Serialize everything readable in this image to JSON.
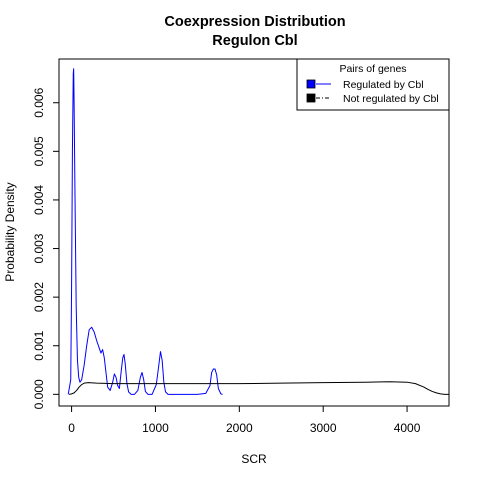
{
  "chart_data": {
    "type": "line",
    "title": "Coexpression Distribution",
    "subtitle": "Regulon Cbl",
    "xlabel": "SCR",
    "ylabel": "Probability Density",
    "xlim": [
      -150,
      4500
    ],
    "ylim": [
      -0.00024,
      0.0069
    ],
    "x_ticks": [
      0,
      1000,
      2000,
      3000,
      4000
    ],
    "x_tick_labels": [
      "0",
      "1000",
      "2000",
      "3000",
      "4000"
    ],
    "y_ticks": [
      0,
      0.001,
      0.002,
      0.003,
      0.004,
      0.005,
      0.006
    ],
    "y_tick_labels": [
      "0.000",
      "0.001",
      "0.002",
      "0.003",
      "0.004",
      "0.005",
      "0.006"
    ],
    "grid": false,
    "legend": {
      "title": "Pairs of genes",
      "position": "top-right",
      "entries": [
        "Regulated by  Cbl",
        "Not regulated by  Cbl"
      ]
    },
    "series": [
      {
        "name": "Regulated by  Cbl",
        "color": "#0000ff",
        "x": [
          -40,
          -10,
          0,
          10,
          20,
          25,
          30,
          40,
          55,
          70,
          85,
          100,
          120,
          150,
          180,
          210,
          240,
          270,
          300,
          330,
          350,
          370,
          390,
          410,
          430,
          460,
          490,
          510,
          530,
          550,
          570,
          590,
          610,
          625,
          640,
          660,
          680,
          710,
          750,
          790,
          820,
          840,
          860,
          880,
          910,
          960,
          1010,
          1040,
          1060,
          1080,
          1100,
          1120,
          1150,
          1200,
          1300,
          1400,
          1500,
          1600,
          1650,
          1670,
          1690,
          1710,
          1730,
          1750,
          1780,
          1800
        ],
        "y": [
          0.0,
          0.0003,
          0.0022,
          0.005,
          0.0066,
          0.0067,
          0.006,
          0.0042,
          0.0018,
          0.0007,
          0.00035,
          0.00025,
          0.0003,
          0.0006,
          0.001,
          0.00133,
          0.00138,
          0.00128,
          0.0011,
          0.00095,
          0.00085,
          0.00092,
          0.00075,
          0.00045,
          0.00015,
          8e-05,
          0.00025,
          0.00042,
          0.00035,
          0.00018,
          0.00012,
          0.00045,
          0.00075,
          0.00082,
          0.00062,
          0.00022,
          5e-05,
          0.0,
          0.0,
          8e-05,
          0.00035,
          0.00045,
          0.0003,
          6e-05,
          0.0,
          0.0,
          0.0002,
          0.0006,
          0.00088,
          0.0007,
          0.00025,
          5e-05,
          0.0,
          0.0,
          0.0,
          0.0,
          0.0,
          2e-05,
          0.00018,
          0.00045,
          0.00052,
          0.00052,
          0.0004,
          0.00012,
          1e-05,
          0.0
        ]
      },
      {
        "name": "Not regulated by  Cbl",
        "color": "#000000",
        "x": [
          -30,
          0,
          30,
          60,
          90,
          120,
          150,
          200,
          300,
          500,
          1000,
          1500,
          2000,
          2500,
          3000,
          3500,
          3800,
          4000,
          4100,
          4200,
          4250,
          4300,
          4350,
          4400,
          4450,
          4500
        ],
        "y": [
          0.0,
          1e-05,
          3e-05,
          8e-05,
          0.00015,
          0.0002,
          0.00023,
          0.00024,
          0.00023,
          0.00022,
          0.00022,
          0.00022,
          0.00022,
          0.00023,
          0.00024,
          0.00025,
          0.00026,
          0.00025,
          0.00022,
          0.00015,
          0.0001,
          6e-05,
          3e-05,
          1e-05,
          0.0,
          0.0
        ]
      }
    ]
  }
}
